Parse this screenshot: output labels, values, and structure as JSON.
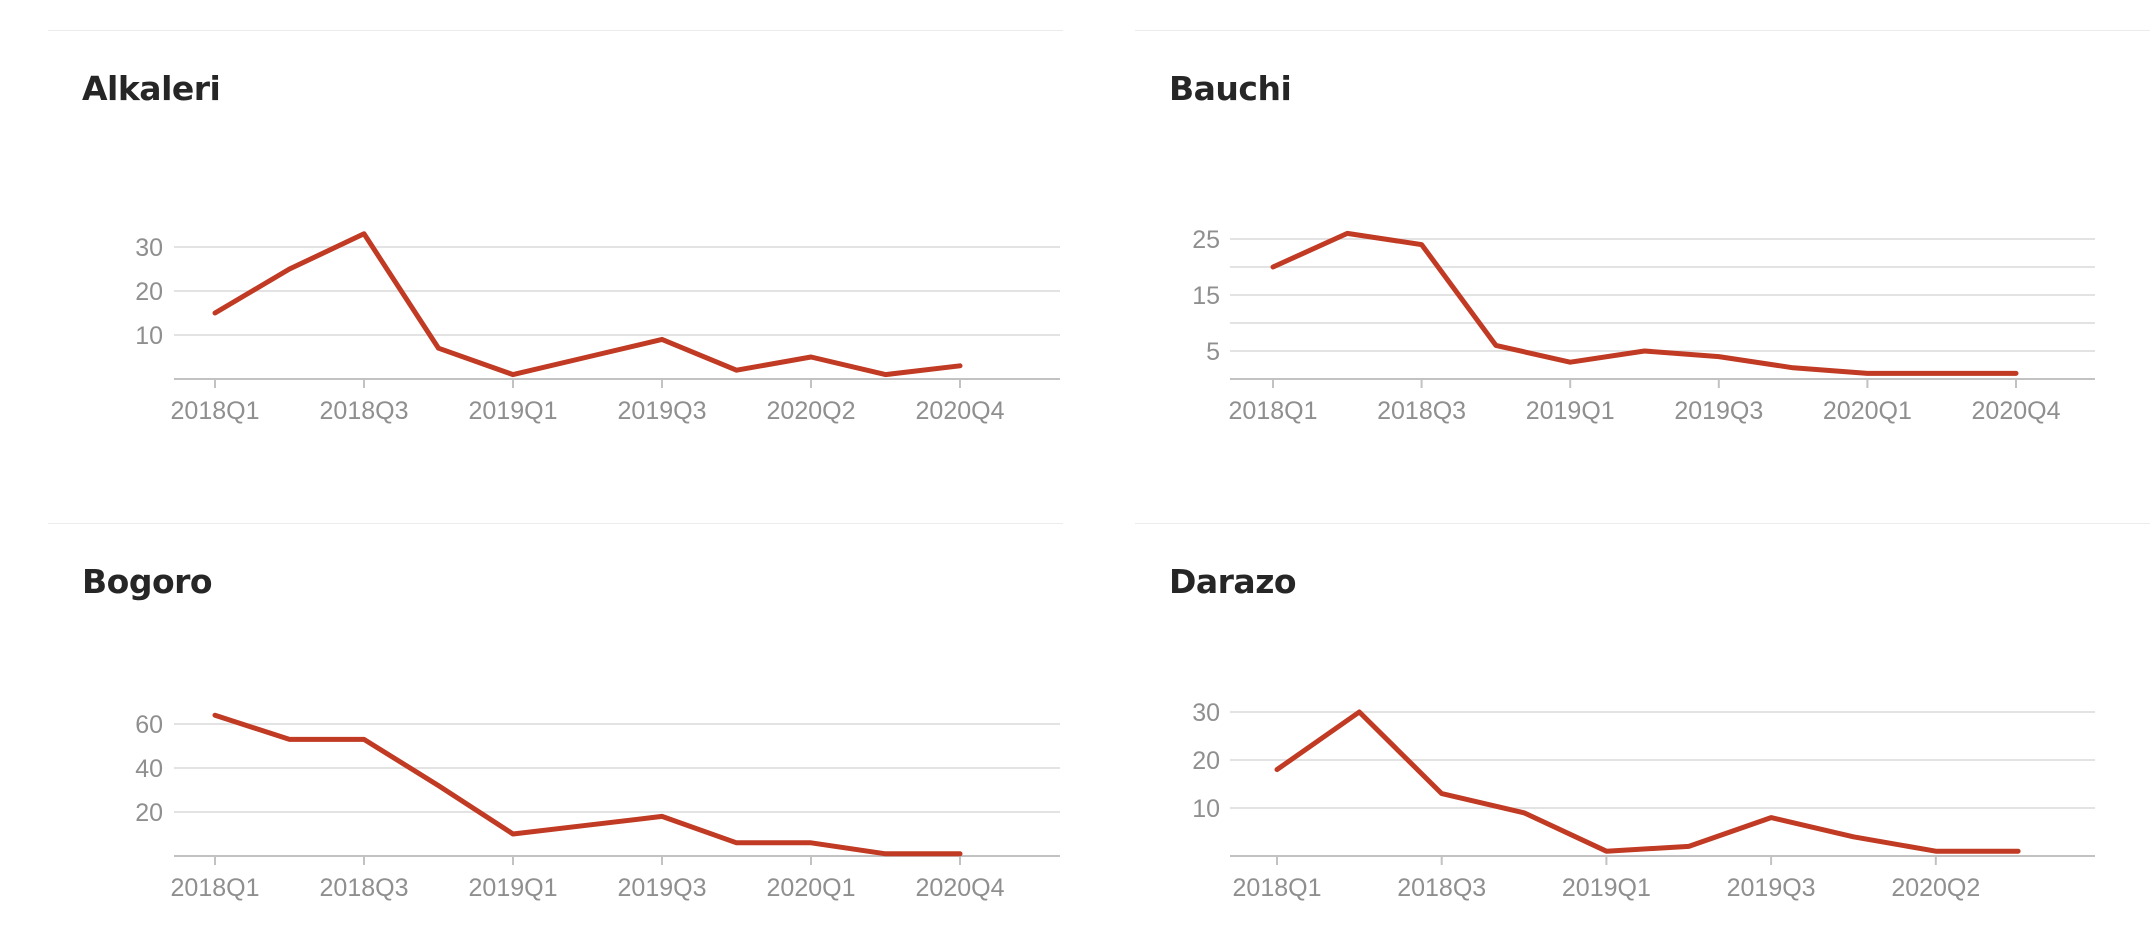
{
  "page": {
    "background": "#ffffff"
  },
  "style": {
    "line_color": "#c13a23",
    "grid_color": "#dadada",
    "axis_color": "#c2c2c2",
    "tick_label_color": "#8f8f8f",
    "title_color": "#262626",
    "separator_color": "#ececec"
  },
  "chart_data": [
    {
      "type": "line",
      "title": "Alkaleri",
      "values": [
        15,
        25,
        33,
        7,
        1,
        5,
        9,
        2,
        5,
        1,
        3
      ],
      "x_tick_labels": [
        "2018Q1",
        "2018Q3",
        "2019Q1",
        "2019Q3",
        "2020Q2",
        "2020Q4"
      ],
      "x_tick_indices": [
        0,
        2,
        4,
        6,
        8,
        10
      ],
      "y_gridlines": [
        10,
        20,
        30
      ],
      "y_axis_labels": [
        10,
        20,
        30
      ],
      "ylim": [
        0,
        33
      ],
      "grid": "horizontal-only",
      "legend": "none"
    },
    {
      "type": "line",
      "title": "Bauchi",
      "values": [
        20,
        26,
        24,
        6,
        3,
        5,
        4,
        2,
        1,
        1,
        1
      ],
      "x_tick_labels": [
        "2018Q1",
        "2018Q3",
        "2019Q1",
        "2019Q3",
        "2020Q1",
        "2020Q4"
      ],
      "x_tick_indices": [
        0,
        2,
        4,
        6,
        8,
        10
      ],
      "y_gridlines": [
        5,
        10,
        15,
        20,
        25
      ],
      "y_axis_labels": [
        5,
        15,
        25
      ],
      "ylim": [
        0,
        26
      ],
      "grid": "horizontal-only",
      "legend": "none"
    },
    {
      "type": "line",
      "title": "Bogoro",
      "values": [
        64,
        53,
        53,
        32,
        10,
        14,
        18,
        6,
        6,
        1,
        1
      ],
      "x_tick_labels": [
        "2018Q1",
        "2018Q3",
        "2019Q1",
        "2019Q3",
        "2020Q1",
        "2020Q4"
      ],
      "x_tick_indices": [
        0,
        2,
        4,
        6,
        8,
        10
      ],
      "y_gridlines": [
        20,
        40,
        60
      ],
      "y_axis_labels": [
        20,
        40,
        60
      ],
      "ylim": [
        0,
        64
      ],
      "grid": "horizontal-only",
      "legend": "none"
    },
    {
      "type": "line",
      "title": "Darazo",
      "values": [
        18,
        30,
        13,
        9,
        1,
        2,
        8,
        4,
        1,
        1
      ],
      "x_tick_labels": [
        "2018Q1",
        "2018Q3",
        "2019Q1",
        "2019Q3",
        "2020Q2"
      ],
      "x_tick_indices": [
        0,
        2,
        4,
        6,
        8
      ],
      "y_gridlines": [
        10,
        20,
        30
      ],
      "y_axis_labels": [
        10,
        20,
        30
      ],
      "ylim": [
        0,
        30
      ],
      "grid": "horizontal-only",
      "legend": "none"
    }
  ]
}
